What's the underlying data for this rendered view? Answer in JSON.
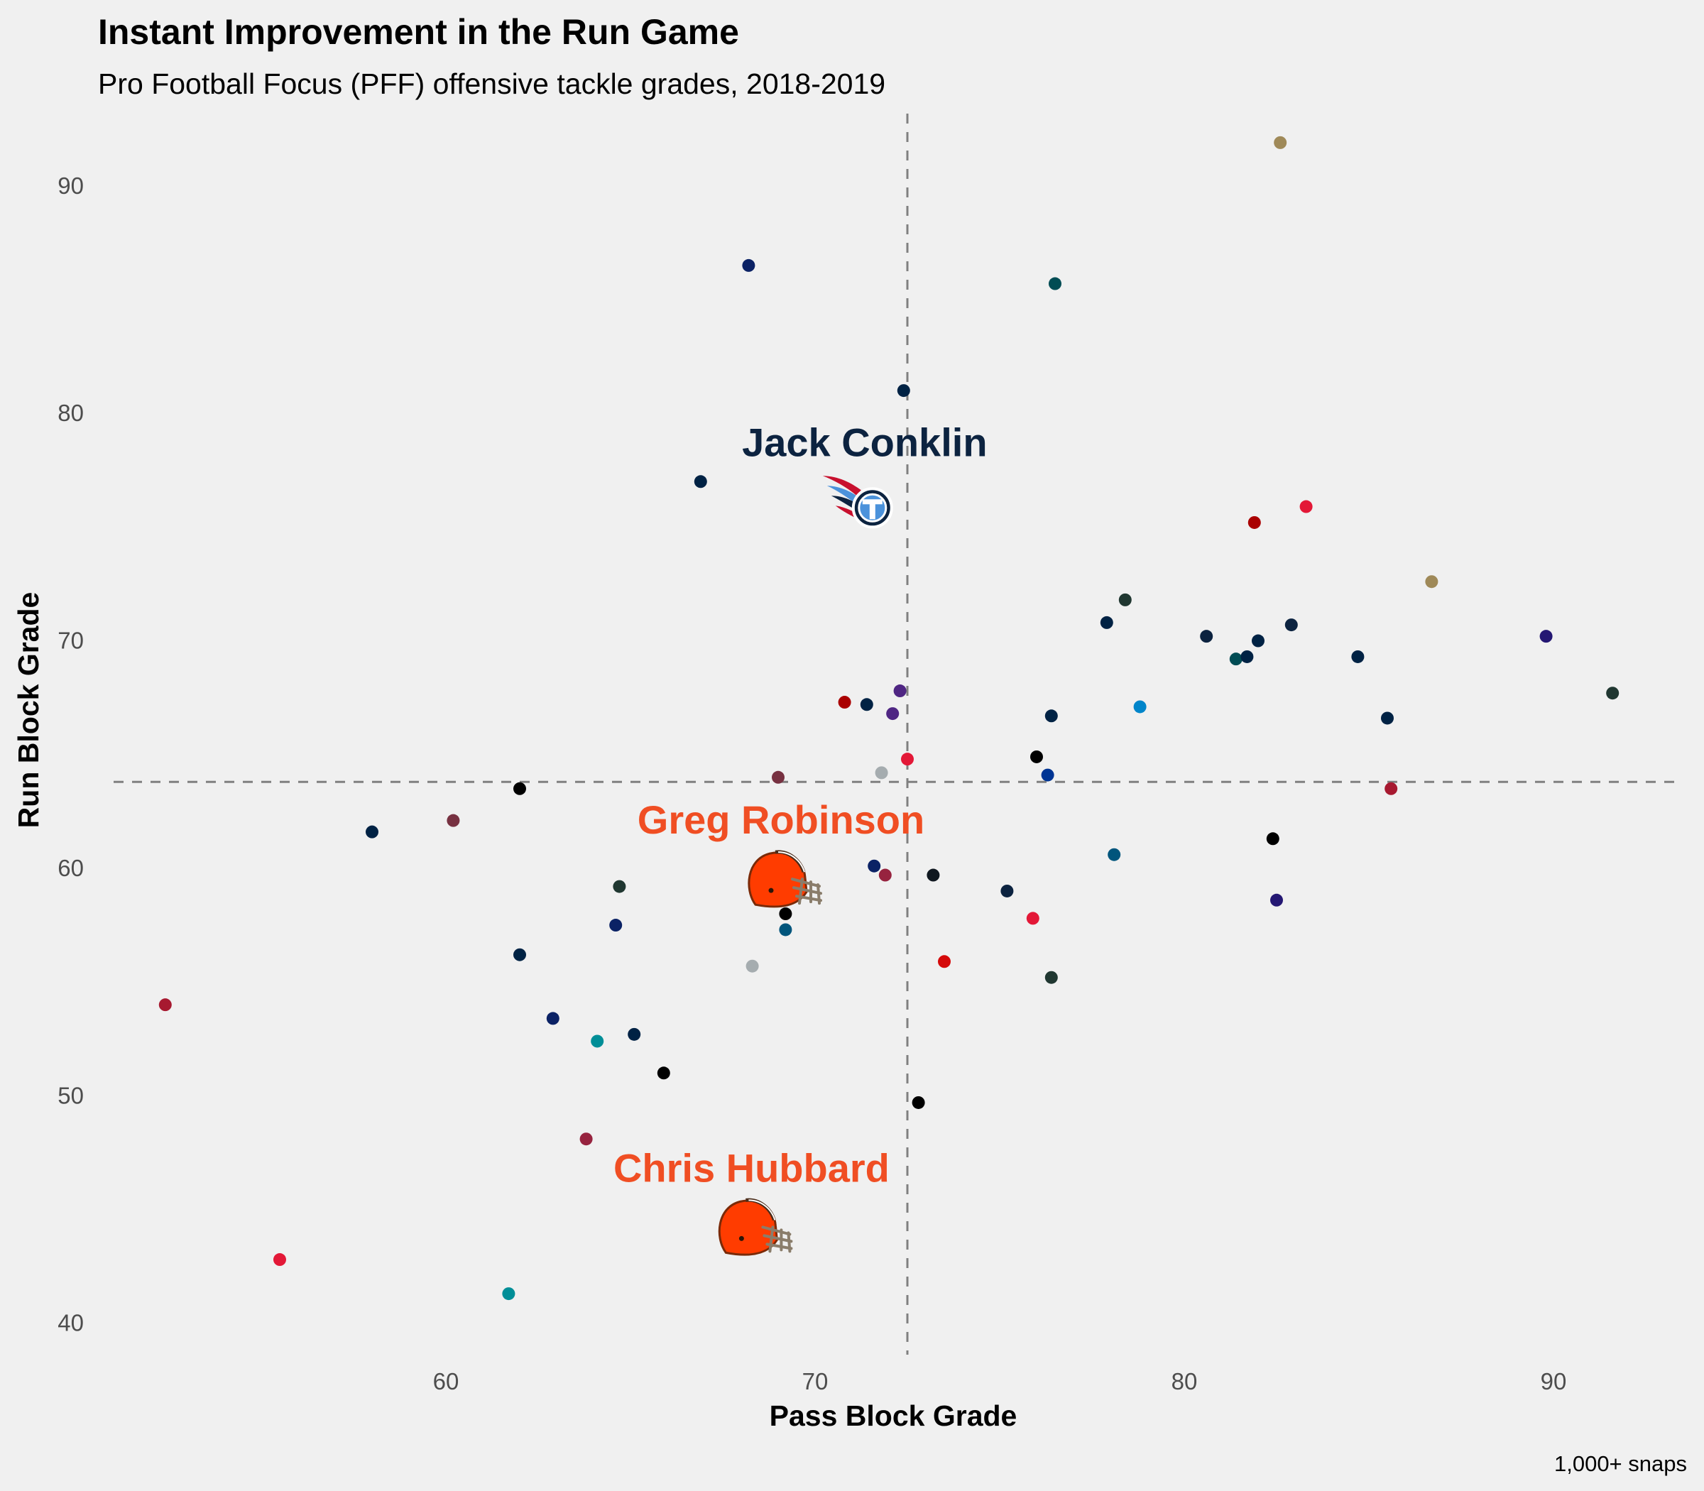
{
  "chart_data": {
    "type": "scatter",
    "title": "Instant Improvement in the Run Game",
    "subtitle": "Pro Football Focus (PFF) offensive tackle grades, 2018-2019",
    "xlabel": "Pass Block Grade",
    "ylabel": "Run Block Grade",
    "caption": "1,000+ snaps",
    "xlim": [
      51,
      93.5
    ],
    "ylim": [
      38.4,
      93.8
    ],
    "x_ticks": [
      60,
      70,
      80,
      90
    ],
    "y_ticks": [
      40,
      50,
      60,
      70,
      80,
      90
    ],
    "grid": false,
    "reference_lines": {
      "x": 72.5,
      "y": 63.8
    },
    "points": [
      {
        "x": 52.4,
        "y": 54.0,
        "color": "#a71930"
      },
      {
        "x": 55.5,
        "y": 42.8,
        "color": "#e31837"
      },
      {
        "x": 58.0,
        "y": 61.6,
        "color": "#002244"
      },
      {
        "x": 60.2,
        "y": 62.1,
        "color": "#773141"
      },
      {
        "x": 61.7,
        "y": 41.3,
        "color": "#008e97"
      },
      {
        "x": 62.0,
        "y": 63.5,
        "color": "#000000"
      },
      {
        "x": 62.0,
        "y": 56.2,
        "color": "#002244"
      },
      {
        "x": 62.9,
        "y": 53.4,
        "color": "#0b2265"
      },
      {
        "x": 63.8,
        "y": 48.1,
        "color": "#97233f"
      },
      {
        "x": 64.1,
        "y": 52.4,
        "color": "#008e97"
      },
      {
        "x": 64.6,
        "y": 57.5,
        "color": "#0b2265"
      },
      {
        "x": 64.7,
        "y": 59.2,
        "color": "#203731"
      },
      {
        "x": 65.1,
        "y": 52.7,
        "color": "#002244"
      },
      {
        "x": 65.9,
        "y": 51.0,
        "color": "#000000"
      },
      {
        "x": 66.9,
        "y": 77.0,
        "color": "#002244"
      },
      {
        "x": 68.2,
        "y": 86.5,
        "color": "#0b2265"
      },
      {
        "x": 68.3,
        "y": 55.7,
        "color": "#a5acaf"
      },
      {
        "x": 69.0,
        "y": 64.0,
        "color": "#773141"
      },
      {
        "x": 69.2,
        "y": 58.0,
        "color": "#000000"
      },
      {
        "x": 69.2,
        "y": 57.3,
        "color": "#00557c"
      },
      {
        "x": 70.8,
        "y": 67.3,
        "color": "#aa0000"
      },
      {
        "x": 71.4,
        "y": 67.2,
        "color": "#002244"
      },
      {
        "x": 71.6,
        "y": 60.1,
        "color": "#0b2265"
      },
      {
        "x": 71.8,
        "y": 64.2,
        "color": "#a5acaf"
      },
      {
        "x": 71.9,
        "y": 59.7,
        "color": "#97233f"
      },
      {
        "x": 72.1,
        "y": 66.8,
        "color": "#4f2683"
      },
      {
        "x": 72.3,
        "y": 67.8,
        "color": "#4f2683"
      },
      {
        "x": 72.4,
        "y": 81.0,
        "color": "#002244"
      },
      {
        "x": 72.5,
        "y": 64.8,
        "color": "#e31837"
      },
      {
        "x": 72.8,
        "y": 49.7,
        "color": "#000000"
      },
      {
        "x": 73.2,
        "y": 59.7,
        "color": "#101820"
      },
      {
        "x": 73.5,
        "y": 55.9,
        "color": "#d50a0a"
      },
      {
        "x": 75.2,
        "y": 59.0,
        "color": "#0c2340"
      },
      {
        "x": 75.9,
        "y": 57.8,
        "color": "#e31837"
      },
      {
        "x": 76.0,
        "y": 64.9,
        "color": "#000000"
      },
      {
        "x": 76.3,
        "y": 64.1,
        "color": "#003594"
      },
      {
        "x": 76.4,
        "y": 66.7,
        "color": "#002244"
      },
      {
        "x": 76.4,
        "y": 55.2,
        "color": "#203731"
      },
      {
        "x": 76.5,
        "y": 85.7,
        "color": "#004c54"
      },
      {
        "x": 77.9,
        "y": 70.8,
        "color": "#002244"
      },
      {
        "x": 78.1,
        "y": 60.6,
        "color": "#00557c"
      },
      {
        "x": 78.4,
        "y": 71.8,
        "color": "#203731"
      },
      {
        "x": 78.8,
        "y": 67.1,
        "color": "#0085ca"
      },
      {
        "x": 80.6,
        "y": 70.2,
        "color": "#0c2340"
      },
      {
        "x": 81.4,
        "y": 69.2,
        "color": "#004c54"
      },
      {
        "x": 81.7,
        "y": 69.3,
        "color": "#002244"
      },
      {
        "x": 81.9,
        "y": 75.2,
        "color": "#aa0000"
      },
      {
        "x": 82.0,
        "y": 70.0,
        "color": "#002244"
      },
      {
        "x": 82.4,
        "y": 61.3,
        "color": "#000000"
      },
      {
        "x": 82.5,
        "y": 58.6,
        "color": "#241773"
      },
      {
        "x": 82.6,
        "y": 91.9,
        "color": "#9f8958"
      },
      {
        "x": 82.9,
        "y": 70.7,
        "color": "#0c2340"
      },
      {
        "x": 83.3,
        "y": 75.9,
        "color": "#e31837"
      },
      {
        "x": 84.7,
        "y": 69.3,
        "color": "#002244"
      },
      {
        "x": 85.5,
        "y": 66.6,
        "color": "#002244"
      },
      {
        "x": 85.6,
        "y": 63.5,
        "color": "#a71930"
      },
      {
        "x": 86.7,
        "y": 72.6,
        "color": "#9f8958"
      },
      {
        "x": 89.8,
        "y": 70.2,
        "color": "#241773"
      },
      {
        "x": 91.6,
        "y": 67.7,
        "color": "#203731"
      }
    ],
    "annotations": [
      {
        "label": "Jack Conklin",
        "x": 71.4,
        "y": 76.0,
        "color": "#0c2340",
        "icon": "titans-logo-icon"
      },
      {
        "label": "Greg Robinson",
        "x": 69.0,
        "y": 59.4,
        "color": "#f04e23",
        "icon": "browns-helmet-icon"
      },
      {
        "label": "Chris Hubbard",
        "x": 68.2,
        "y": 44.1,
        "color": "#f04e23",
        "icon": "browns-helmet-icon"
      }
    ]
  }
}
